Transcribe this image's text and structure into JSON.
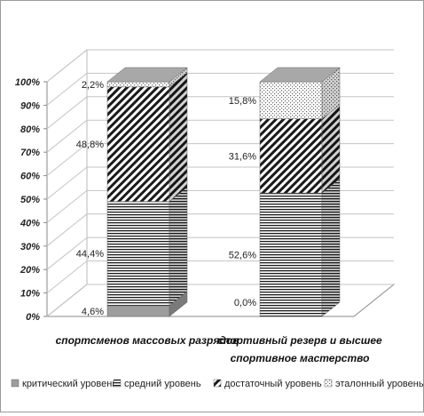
{
  "chart_data": {
    "type": "bar",
    "stacked": true,
    "three_d": true,
    "categories": [
      [
        "спортсменов массовых разрядов"
      ],
      [
        "спортивный резерв и высшее",
        "спортивное мастерство"
      ]
    ],
    "series": [
      {
        "name": "критический уровень",
        "values": [
          4.6,
          0.0
        ],
        "labels": [
          "4,6%",
          "0,0%"
        ],
        "pattern": "solid-gray"
      },
      {
        "name": "средний уровень",
        "values": [
          44.4,
          52.6
        ],
        "labels": [
          "44,4%",
          "52,6%"
        ],
        "pattern": "horizontal-lines"
      },
      {
        "name": "достаточный уровень",
        "values": [
          48.8,
          31.6
        ],
        "labels": [
          "48,8%",
          "31,6%"
        ],
        "pattern": "diagonal-lines"
      },
      {
        "name": "эталонный уровень",
        "values": [
          2.2,
          15.8
        ],
        "labels": [
          "2,2%",
          "15,8%"
        ],
        "pattern": "dotted"
      }
    ],
    "y_ticks": [
      "0%",
      "10%",
      "20%",
      "30%",
      "40%",
      "50%",
      "60%",
      "70%",
      "80%",
      "90%",
      "100%"
    ],
    "ylim": [
      0,
      100
    ],
    "legend_position": "bottom",
    "grid": true,
    "title": "",
    "xlabel": "",
    "ylabel": ""
  }
}
